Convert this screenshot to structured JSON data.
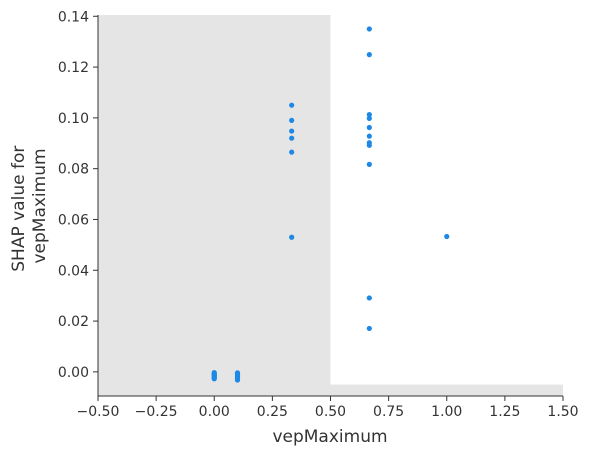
{
  "chart_data": {
    "type": "scatter",
    "xlabel": "vepMaximum",
    "ylabel_lines": [
      "SHAP value for",
      "vepMaximum"
    ],
    "xlim": [
      -0.5,
      1.5
    ],
    "ylim": [
      -0.0095,
      0.1405
    ],
    "xticks": [
      -0.5,
      -0.25,
      0.0,
      0.25,
      0.5,
      0.75,
      1.0,
      1.25,
      1.5
    ],
    "xtick_labels": [
      "−0.50",
      "−0.25",
      "0.00",
      "0.25",
      "0.50",
      "0.75",
      "1.00",
      "1.25",
      "1.50"
    ],
    "yticks": [
      0.0,
      0.02,
      0.04,
      0.06,
      0.08,
      0.1,
      0.12,
      0.14
    ],
    "ytick_labels": [
      "0.00",
      "0.02",
      "0.04",
      "0.06",
      "0.08",
      "0.10",
      "0.12",
      "0.14"
    ],
    "point_color": "#1e88e5",
    "background_histogram": {
      "color": "#e5e5e5",
      "bins": [
        {
          "x0": -0.5,
          "x1": 0.5,
          "relative_height": 1.0
        },
        {
          "x0": 0.5,
          "x1": 1.5,
          "relative_height": 0.03
        }
      ]
    },
    "points": [
      {
        "x": 0.0,
        "y": -0.0003
      },
      {
        "x": 0.0,
        "y": -0.0006
      },
      {
        "x": 0.0,
        "y": -0.0009
      },
      {
        "x": 0.0,
        "y": -0.0012
      },
      {
        "x": 0.0,
        "y": -0.0015
      },
      {
        "x": 0.0,
        "y": -0.0018
      },
      {
        "x": 0.0,
        "y": -0.0021
      },
      {
        "x": 0.0,
        "y": -0.0024
      },
      {
        "x": 0.0,
        "y": -0.0027
      },
      {
        "x": 0.1,
        "y": -0.0004
      },
      {
        "x": 0.1,
        "y": -0.0008
      },
      {
        "x": 0.1,
        "y": -0.0012
      },
      {
        "x": 0.1,
        "y": -0.0016
      },
      {
        "x": 0.1,
        "y": -0.002
      },
      {
        "x": 0.1,
        "y": -0.0024
      },
      {
        "x": 0.1,
        "y": -0.0028
      },
      {
        "x": 0.1,
        "y": -0.0032
      },
      {
        "x": 0.333,
        "y": 0.105
      },
      {
        "x": 0.333,
        "y": 0.099
      },
      {
        "x": 0.333,
        "y": 0.0948
      },
      {
        "x": 0.333,
        "y": 0.092
      },
      {
        "x": 0.333,
        "y": 0.0865
      },
      {
        "x": 0.333,
        "y": 0.053
      },
      {
        "x": 0.667,
        "y": 0.135
      },
      {
        "x": 0.667,
        "y": 0.1249
      },
      {
        "x": 0.667,
        "y": 0.1013
      },
      {
        "x": 0.667,
        "y": 0.0998
      },
      {
        "x": 0.667,
        "y": 0.0962
      },
      {
        "x": 0.667,
        "y": 0.0928
      },
      {
        "x": 0.667,
        "y": 0.0902
      },
      {
        "x": 0.667,
        "y": 0.0892
      },
      {
        "x": 0.667,
        "y": 0.0817
      },
      {
        "x": 0.667,
        "y": 0.0291
      },
      {
        "x": 0.667,
        "y": 0.0171
      },
      {
        "x": 1.0,
        "y": 0.0533
      }
    ]
  }
}
